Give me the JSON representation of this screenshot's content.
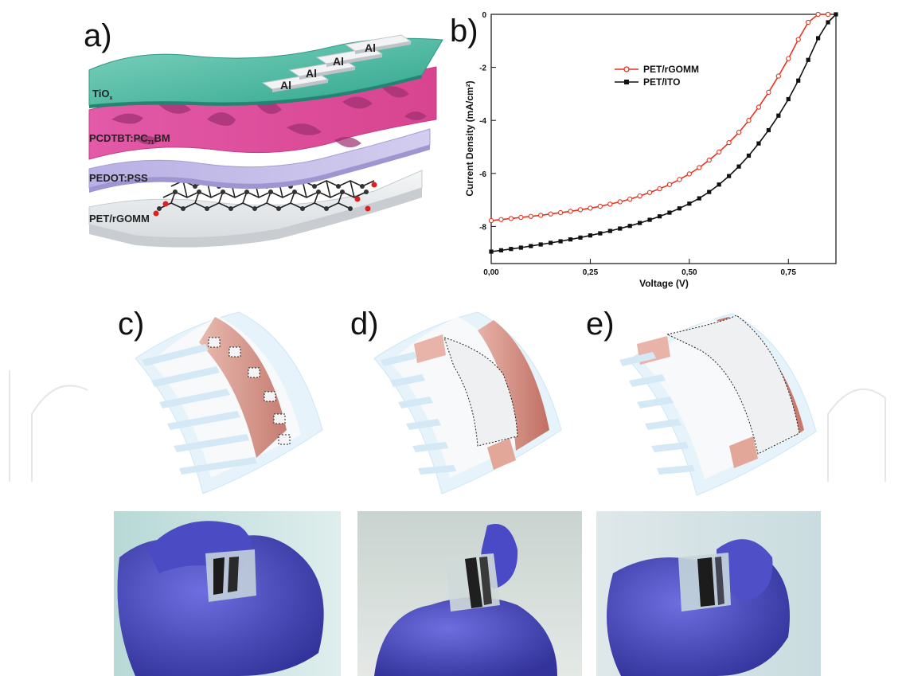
{
  "panels": {
    "a": "a)",
    "b": "b)",
    "c": "c)",
    "d": "d)",
    "e": "e)"
  },
  "schematic": {
    "layers": {
      "tiox": {
        "text": "TiO",
        "sub": "x"
      },
      "active": {
        "pre": "PCDTBT:PC",
        "sub": "71",
        "post": "BM"
      },
      "pedot": "PEDOT:PSS",
      "substrate": "PET/rGOMM"
    },
    "electrodes": [
      "Al",
      "Al",
      "Al",
      "Al"
    ],
    "colors": {
      "tiox": "#3fb39b",
      "active": "#d9479b",
      "pedot": "#b7aee0",
      "substrate": "#e9ecee"
    }
  },
  "chart_data": {
    "type": "line",
    "title": "",
    "xlabel": "Voltage (V)",
    "ylabel": "Current Density (mA/cm²)",
    "xlim": [
      0.0,
      0.87
    ],
    "ylim": [
      -9.4,
      0.0
    ],
    "xticks": [
      0.0,
      0.25,
      0.5,
      0.75
    ],
    "xtick_labels": [
      "0,00",
      "0,25",
      "0,50",
      "0,75"
    ],
    "yticks": [
      0,
      -2,
      -4,
      -6,
      -8
    ],
    "ytick_labels": [
      "0",
      "-2",
      "-4",
      "-6",
      "-8"
    ],
    "legend_position": "top-center",
    "series": [
      {
        "name": "PET/rGOMM",
        "color": "#e8321e",
        "marker": "open-circle",
        "x": [
          0.0,
          0.025,
          0.05,
          0.075,
          0.1,
          0.125,
          0.15,
          0.175,
          0.2,
          0.225,
          0.25,
          0.275,
          0.3,
          0.325,
          0.35,
          0.375,
          0.4,
          0.425,
          0.45,
          0.475,
          0.5,
          0.525,
          0.55,
          0.575,
          0.6,
          0.625,
          0.65,
          0.675,
          0.7,
          0.725,
          0.75,
          0.775,
          0.8,
          0.825,
          0.85
        ],
        "values": [
          -7.78,
          -7.74,
          -7.7,
          -7.66,
          -7.62,
          -7.58,
          -7.53,
          -7.48,
          -7.43,
          -7.37,
          -7.31,
          -7.24,
          -7.16,
          -7.07,
          -6.97,
          -6.85,
          -6.72,
          -6.58,
          -6.42,
          -6.23,
          -6.02,
          -5.78,
          -5.5,
          -5.19,
          -4.84,
          -4.45,
          -4.0,
          -3.5,
          -2.94,
          -2.33,
          -1.67,
          -0.95,
          -0.3,
          0.0,
          0.0
        ]
      },
      {
        "name": "PET/ITO",
        "color": "#111111",
        "marker": "filled-square",
        "x": [
          0.0,
          0.025,
          0.05,
          0.075,
          0.1,
          0.125,
          0.15,
          0.175,
          0.2,
          0.225,
          0.25,
          0.275,
          0.3,
          0.325,
          0.35,
          0.375,
          0.4,
          0.425,
          0.45,
          0.475,
          0.5,
          0.525,
          0.55,
          0.575,
          0.6,
          0.625,
          0.65,
          0.675,
          0.7,
          0.725,
          0.75,
          0.775,
          0.8,
          0.825,
          0.85,
          0.87
        ],
        "values": [
          -8.95,
          -8.9,
          -8.85,
          -8.8,
          -8.74,
          -8.68,
          -8.62,
          -8.56,
          -8.49,
          -8.42,
          -8.34,
          -8.26,
          -8.17,
          -8.08,
          -7.98,
          -7.87,
          -7.75,
          -7.62,
          -7.48,
          -7.32,
          -7.14,
          -6.94,
          -6.7,
          -6.42,
          -6.1,
          -5.74,
          -5.33,
          -4.87,
          -4.37,
          -3.82,
          -3.2,
          -2.5,
          -1.72,
          -0.9,
          -0.3,
          0.0
        ]
      }
    ]
  }
}
